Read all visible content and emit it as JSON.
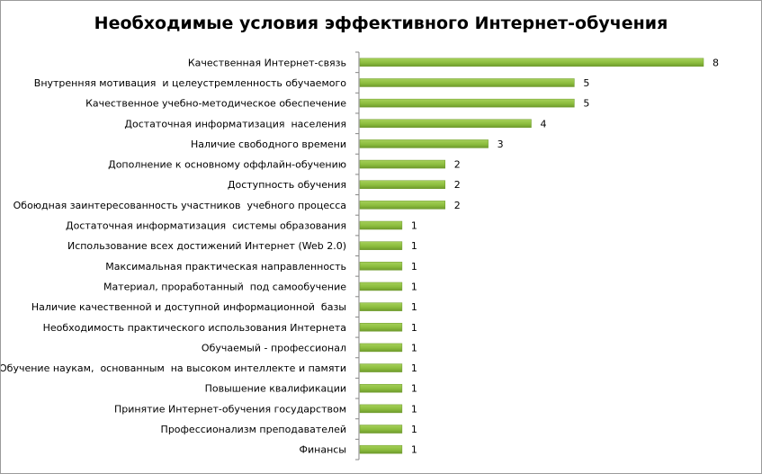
{
  "chart_data": {
    "type": "bar",
    "orientation": "horizontal",
    "title": "Необходимые условия эффективного Интернет-обучения",
    "xlabel": "",
    "ylabel": "",
    "grid": false,
    "legend": "none",
    "bar_color": "#8cbd3e",
    "bar_color_light": "#a6d05a",
    "bar_color_dark": "#6e9a2c",
    "data_labels": true,
    "categories": [
      "Качественная Интернет-связь",
      "Внутренняя мотивация  и целеустремленность обучаемого",
      "Качественное учебно-методическое обеспечение",
      "Достаточная информатизация  населения",
      "Наличие свободного времени",
      "Дополнение к основному оффлайн-обучению",
      "Доступность обучения",
      "Обоюдная заинтересованность участников  учебного процесса",
      "Достаточная информатизация  системы образования",
      "Использование всех достижений Интернет (Web 2.0)",
      "Максимальная практическая направленность",
      "Материал, проработанный  под самообучение",
      "Наличие качественной и доступной информационной  базы",
      "Необходимость практического использования Интернета",
      "Обучаемый - профессионал",
      "Обучение наукам,  основанным  на высоком интеллекте и памяти",
      "Повышение квалификации",
      "Принятие Интернет-обучения государством",
      "Профессионализм преподавателей",
      "Финансы"
    ],
    "values": [
      8,
      5,
      5,
      4,
      3,
      2,
      2,
      2,
      1,
      1,
      1,
      1,
      1,
      1,
      1,
      1,
      1,
      1,
      1,
      1
    ],
    "xlim": [
      0,
      8
    ]
  }
}
